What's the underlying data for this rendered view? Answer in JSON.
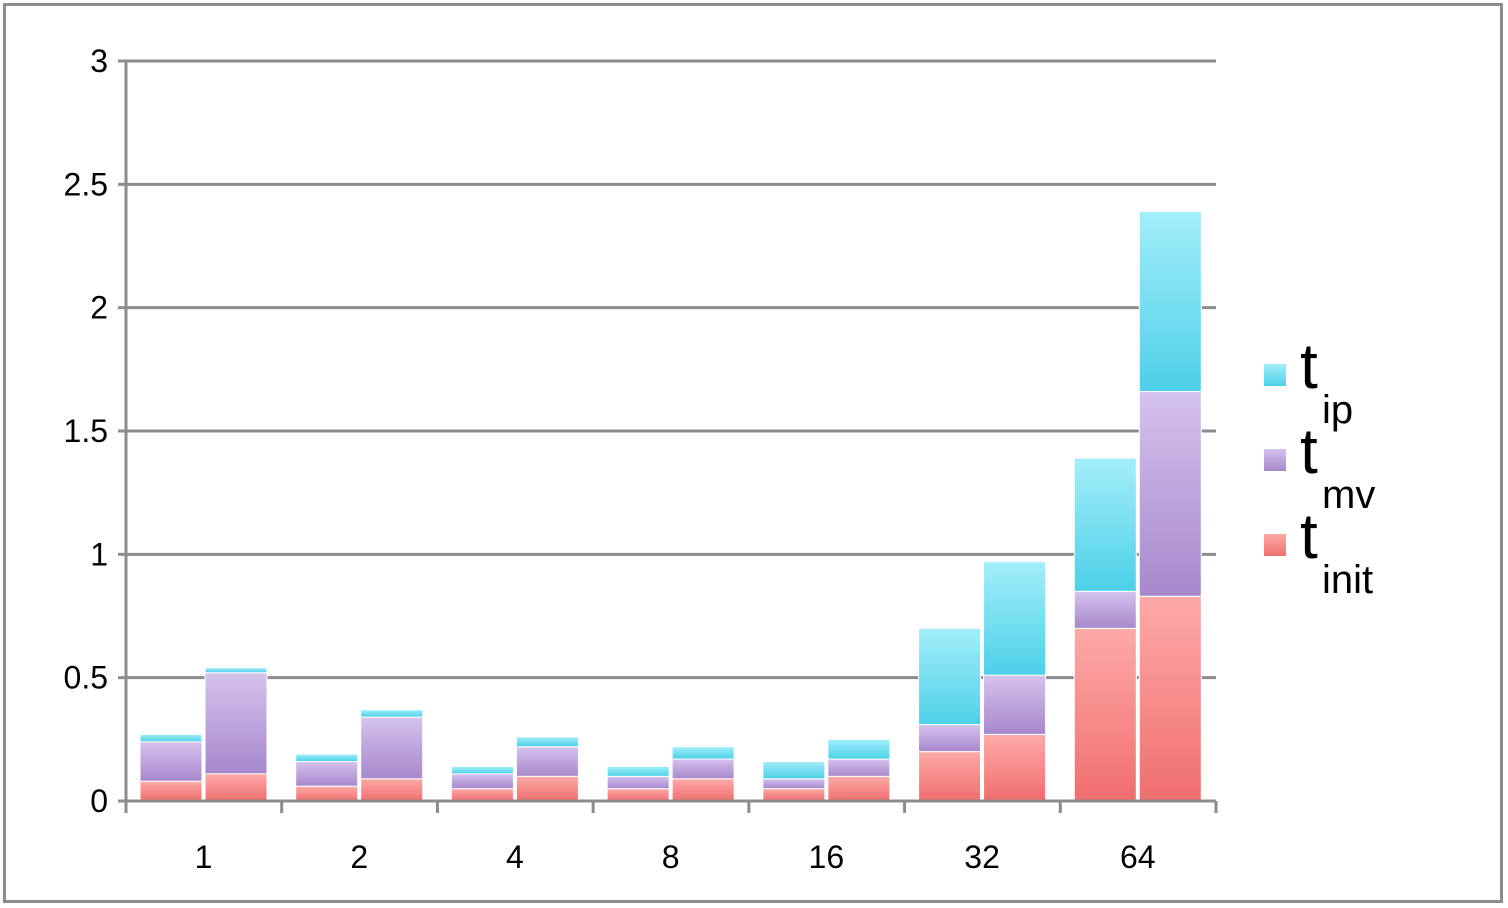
{
  "chart_data": {
    "type": "bar",
    "stacked": true,
    "grouped": true,
    "categories": [
      "1",
      "2",
      "4",
      "8",
      "16",
      "32",
      "64"
    ],
    "bars_per_category": 2,
    "series": [
      {
        "name": "t_init",
        "label_main": "t",
        "label_sub": "init",
        "color": "#f06e6e",
        "values": [
          [
            0.08,
            0.11
          ],
          [
            0.06,
            0.09
          ],
          [
            0.05,
            0.1
          ],
          [
            0.05,
            0.09
          ],
          [
            0.05,
            0.1
          ],
          [
            0.2,
            0.27
          ],
          [
            0.7,
            0.83
          ]
        ]
      },
      {
        "name": "t_mv",
        "label_main": "t",
        "label_sub": "mv",
        "color": "#a688cc",
        "values": [
          [
            0.16,
            0.41
          ],
          [
            0.1,
            0.25
          ],
          [
            0.06,
            0.12
          ],
          [
            0.05,
            0.08
          ],
          [
            0.04,
            0.07
          ],
          [
            0.11,
            0.24
          ],
          [
            0.15,
            0.83
          ]
        ]
      },
      {
        "name": "t_ip",
        "label_main": "t",
        "label_sub": "ip",
        "color": "#4dd0e8",
        "values": [
          [
            0.03,
            0.02
          ],
          [
            0.03,
            0.03
          ],
          [
            0.03,
            0.04
          ],
          [
            0.04,
            0.05
          ],
          [
            0.07,
            0.08
          ],
          [
            0.39,
            0.46
          ],
          [
            0.54,
            0.73
          ]
        ]
      }
    ],
    "yticks": [
      "0",
      "0.5",
      "1",
      "1.5",
      "2",
      "2.5",
      "3"
    ],
    "ylim": [
      0,
      3
    ],
    "grid": true,
    "legend_position": "right",
    "xlabel": "",
    "ylabel": "",
    "title": ""
  }
}
